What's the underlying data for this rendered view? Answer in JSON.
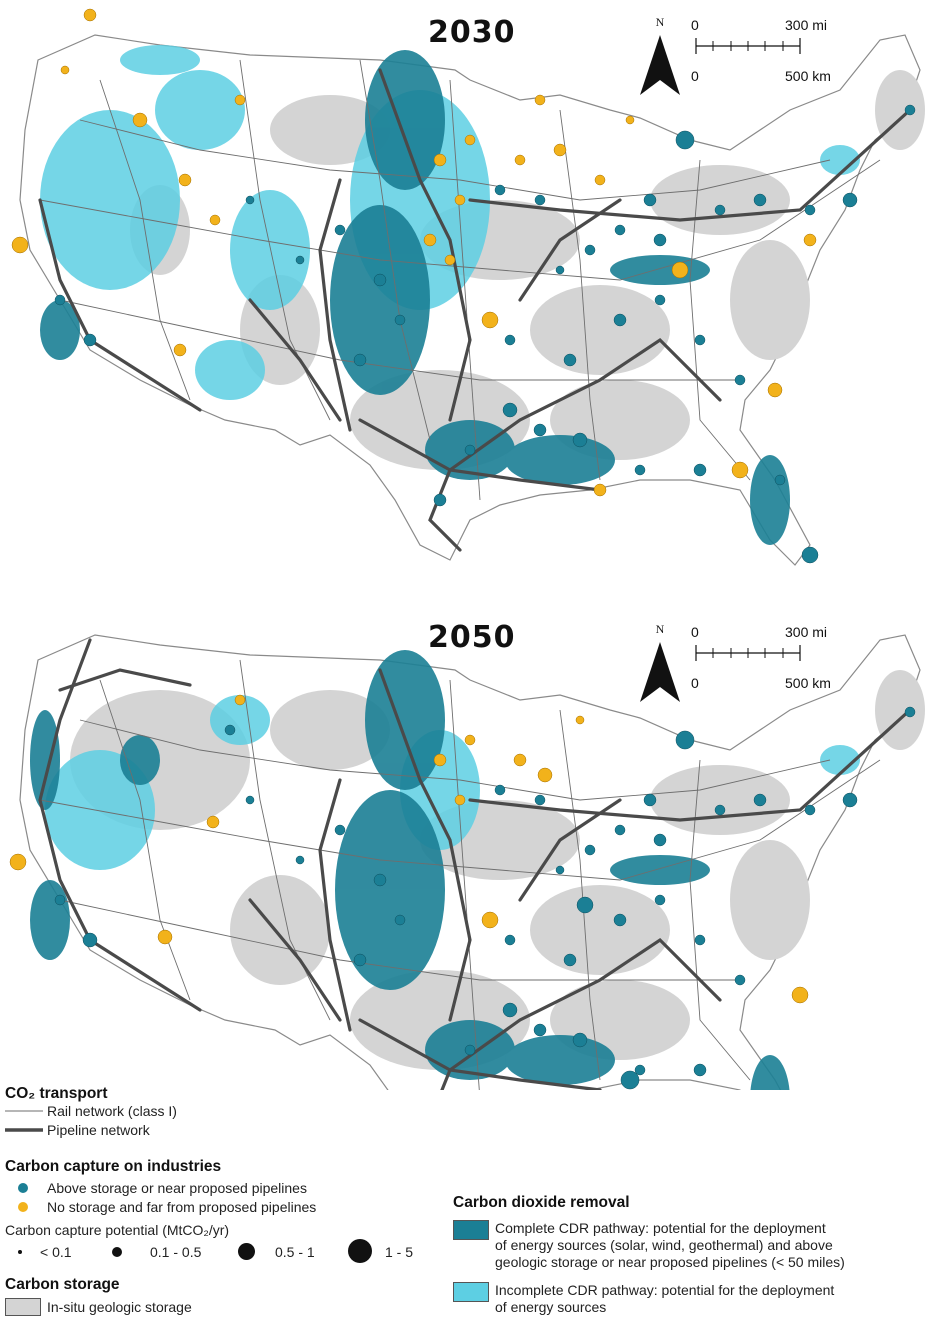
{
  "maps": [
    {
      "id": "map-2030",
      "year": "2030",
      "scale": {
        "north": "N",
        "mi_zero": "0",
        "mi_max": "300 mi",
        "km_zero": "0",
        "km_max": "500 km"
      }
    },
    {
      "id": "map-2050",
      "year": "2050",
      "scale": {
        "north": "N",
        "mi_zero": "0",
        "mi_max": "300 mi",
        "km_zero": "0",
        "km_max": "500 km"
      }
    }
  ],
  "legend": {
    "transport": {
      "heading": "CO₂ transport",
      "rail": "Rail network (class I)",
      "pipeline": "Pipeline network"
    },
    "capture": {
      "heading": "Carbon capture on industries",
      "above_storage": "Above storage or near proposed pipelines",
      "no_storage": "No storage and far from proposed pipelines",
      "potential_title": "Carbon capture potential (MtCO₂/yr)",
      "sizes": [
        "< 0.1",
        "0.1 - 0.5",
        "0.5 - 1",
        "1 - 5"
      ]
    },
    "storage": {
      "heading": "Carbon storage",
      "insitu": "In-situ geologic storage"
    },
    "cdr": {
      "heading": "Carbon dioxide removal",
      "complete_line1": "Complete CDR pathway: potential for the deployment",
      "complete_line2": "of energy sources (solar, wind, geothermal) and above",
      "complete_line3": "geologic storage or near proposed pipelines (< 50 miles)",
      "incomplete_line1": "Incomplete CDR pathway: potential for the deployment",
      "incomplete_line2": "of energy sources"
    }
  },
  "colors": {
    "teal": "#1b7f95",
    "light_blue": "#5dcfe3",
    "orange": "#f2b21b",
    "gray": "#d4d4d4",
    "pipeline": "#4a4a4a",
    "rail": "#6e6e6e"
  }
}
